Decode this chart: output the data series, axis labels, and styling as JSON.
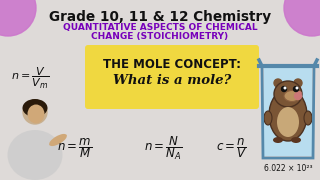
{
  "bg_color": "#e8e4e8",
  "title_line1": "Grade 10, 11 & 12 Chemistry",
  "title_line1_color": "#111111",
  "title_line2": "Quantitative aspects of chemical",
  "title_line3": "change (Stoichiometry)",
  "title_purple_color": "#7700BB",
  "yellow_box_color": "#F0D840",
  "mole_concept_text": "THE MOLE CONCEPT:",
  "what_text": "What is a mole?",
  "avogadro": "6.022 × 10²³",
  "pink_circle_color": "#CC88CC",
  "beaker_color": "#AADDEE",
  "beaker_edge": "#7799AA",
  "mole_body_color": "#7A5535",
  "mole_belly_color": "#B8956A",
  "mole_face_color": "#C4A070"
}
